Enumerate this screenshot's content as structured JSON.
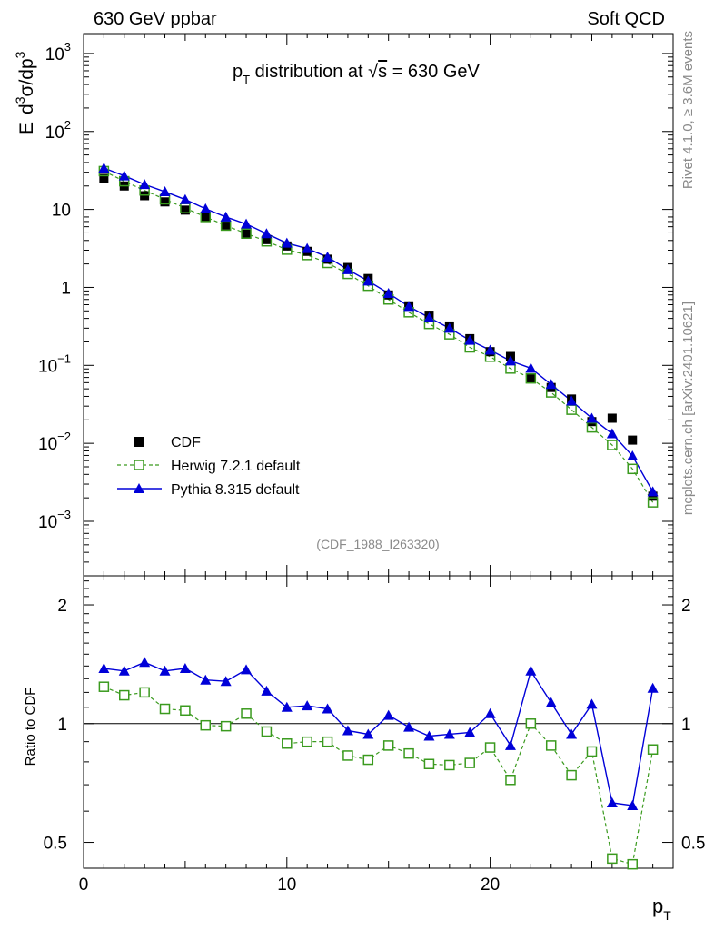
{
  "header": {
    "left": "630 GeV ppbar",
    "right": "Soft QCD"
  },
  "side_labels": {
    "top": "Rivet 4.1.0, ≥ 3.6M events",
    "bottom": "mcplots.cern.ch [arXiv:2401.10621]"
  },
  "chart_data": [
    {
      "type": "scatter",
      "panel": "main",
      "title": "p_T distribution at √s = 630 GeV",
      "title_parts": {
        "p": "p",
        "T": "T",
        "mid": " distribution at ",
        "root": "√",
        "s": "s",
        "end": " = 630 GeV"
      },
      "ylabel_parts": {
        "E": "E",
        "d": "d",
        "3a": "3",
        "sig": "σ/dp",
        "3b": "3"
      },
      "yscale": "log",
      "ylim": [
        0.0002,
        1800
      ],
      "xlim": [
        0,
        29
      ],
      "ytick_labels": [
        {
          "value": 1000,
          "base": "10",
          "exp": "3"
        },
        {
          "value": 100,
          "base": "10",
          "exp": "2"
        },
        {
          "value": 10,
          "base": "10",
          "exp": ""
        },
        {
          "value": 1,
          "base": "1",
          "exp": ""
        },
        {
          "value": 0.1,
          "base": "10",
          "exp": "−1"
        },
        {
          "value": 0.01,
          "base": "10",
          "exp": "−2"
        },
        {
          "value": 0.001,
          "base": "10",
          "exp": "−3"
        }
      ],
      "watermark": "(CDF_1988_I263320)",
      "legend_position": "bottom-left",
      "series": [
        {
          "name": "CDF",
          "color": "#000000",
          "style": "square-filled",
          "x": [
            1,
            2,
            3,
            4,
            5,
            6,
            7,
            8,
            9,
            10,
            11,
            12,
            13,
            14,
            15,
            16,
            17,
            18,
            19,
            20,
            21,
            22,
            23,
            24,
            25,
            26,
            27,
            28
          ],
          "values": [
            25,
            20,
            15,
            12.5,
            9.8,
            8,
            6.3,
            4.8,
            4.1,
            3.4,
            2.9,
            2.3,
            1.8,
            1.3,
            0.8,
            0.58,
            0.44,
            0.32,
            0.22,
            0.15,
            0.13,
            0.068,
            0.052,
            0.037,
            0.019,
            0.021,
            0.011,
            0.0021
          ]
        },
        {
          "name": "Herwig 7.2.1 default",
          "color": "#3a9a1e",
          "style": "square-open-dashed",
          "x": [
            1,
            2,
            3,
            4,
            5,
            6,
            7,
            8,
            9,
            10,
            11,
            12,
            13,
            14,
            15,
            16,
            17,
            18,
            19,
            20,
            21,
            22,
            23,
            24,
            25,
            26,
            27,
            28
          ],
          "values": [
            31,
            23,
            17.5,
            13.5,
            10.4,
            8,
            6.2,
            4.9,
            3.9,
            3.05,
            2.6,
            2.06,
            1.49,
            1.05,
            0.7,
            0.48,
            0.34,
            0.25,
            0.17,
            0.129,
            0.091,
            0.068,
            0.045,
            0.027,
            0.016,
            0.0095,
            0.0047,
            0.00175
          ]
        },
        {
          "name": "Pythia 8.315 default",
          "color": "#0000d8",
          "style": "triangle-filled-solid",
          "x": [
            1,
            2,
            3,
            4,
            5,
            6,
            7,
            8,
            9,
            10,
            11,
            12,
            13,
            14,
            15,
            16,
            17,
            18,
            19,
            20,
            21,
            22,
            23,
            24,
            25,
            26,
            27,
            28
          ],
          "values": [
            34,
            27,
            20.9,
            16.9,
            13.4,
            10.2,
            8,
            6.5,
            4.9,
            3.7,
            3.15,
            2.45,
            1.69,
            1.21,
            0.84,
            0.57,
            0.41,
            0.3,
            0.21,
            0.157,
            0.114,
            0.092,
            0.057,
            0.035,
            0.021,
            0.0133,
            0.0069,
            0.0024
          ]
        }
      ]
    },
    {
      "type": "line",
      "panel": "ratio",
      "ylabel": "Ratio to CDF",
      "xlabel_parts": {
        "p": "p",
        "T": "T"
      },
      "xlim": [
        0,
        29
      ],
      "ylim": [
        0.43,
        2.37
      ],
      "xtick_labels": [
        "0",
        "10",
        "20"
      ],
      "ytick_labels": [
        "2",
        "1",
        "0.5"
      ],
      "reference": 1,
      "series": [
        {
          "name": "Herwig 7.2.1 default",
          "color": "#3a9a1e",
          "x": [
            1,
            2,
            3,
            4,
            5,
            6,
            7,
            8,
            9,
            10,
            11,
            12,
            13,
            14,
            15,
            16,
            17,
            18,
            19,
            20,
            21,
            22,
            23,
            24,
            25,
            26,
            27,
            28
          ],
          "values": [
            1.24,
            1.18,
            1.2,
            1.09,
            1.08,
            0.99,
            0.985,
            1.06,
            0.955,
            0.89,
            0.9,
            0.9,
            0.83,
            0.81,
            0.88,
            0.84,
            0.79,
            0.785,
            0.795,
            0.87,
            0.72,
            1.0,
            0.88,
            0.74,
            0.85,
            0.455,
            0.44,
            0.86
          ]
        },
        {
          "name": "Pythia 8.315 default",
          "color": "#0000d8",
          "x": [
            1,
            2,
            3,
            4,
            5,
            6,
            7,
            8,
            9,
            10,
            11,
            12,
            13,
            14,
            15,
            16,
            17,
            18,
            19,
            20,
            21,
            22,
            23,
            24,
            25,
            26,
            27,
            28
          ],
          "values": [
            1.38,
            1.36,
            1.43,
            1.36,
            1.38,
            1.29,
            1.28,
            1.37,
            1.21,
            1.1,
            1.11,
            1.09,
            0.96,
            0.94,
            1.05,
            0.98,
            0.93,
            0.94,
            0.95,
            1.06,
            0.88,
            1.36,
            1.13,
            0.94,
            1.12,
            0.63,
            0.62,
            1.23
          ]
        }
      ]
    }
  ]
}
